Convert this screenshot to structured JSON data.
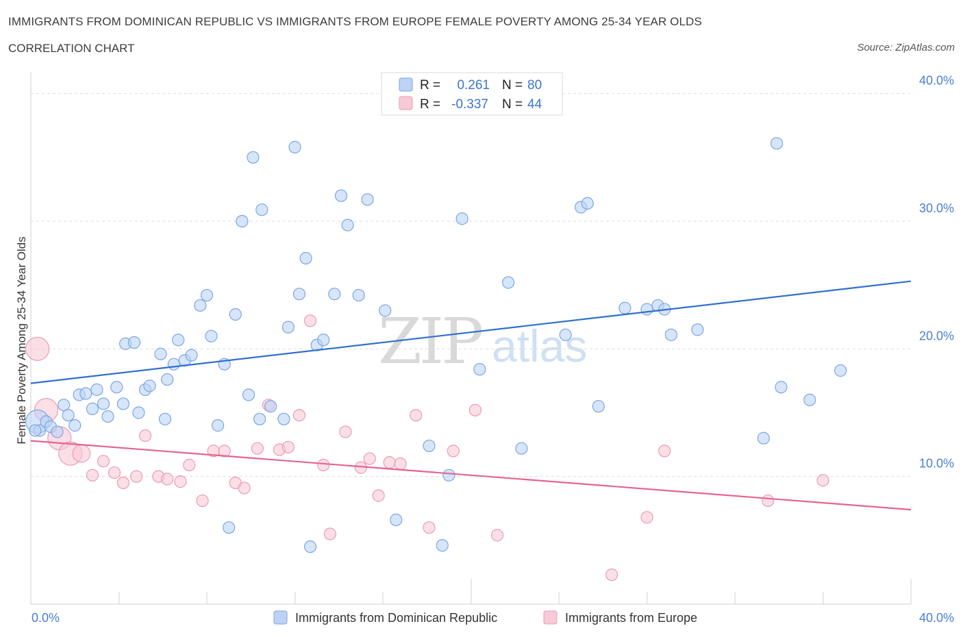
{
  "title": "IMMIGRANTS FROM DOMINICAN REPUBLIC VS IMMIGRANTS FROM EUROPE FEMALE POVERTY AMONG 25-34 YEAR OLDS",
  "subtitle": "CORRELATION CHART",
  "source": "Source: ZipAtlas.com",
  "watermark": {
    "zip": "ZIP",
    "atlas": "atlas"
  },
  "colors": {
    "blue_fill": "#bcd3f5",
    "blue_stroke": "#7aa6e3",
    "blue_line": "#2f6fd0",
    "pink_fill": "#f8c9d7",
    "pink_stroke": "#ec9ab3",
    "pink_line": "#e4648f",
    "grid": "#dddddd",
    "axis_label": "#4a7fd0"
  },
  "stats": {
    "series": [
      {
        "r_label": "R =",
        "r_value": "0.261",
        "n_label": "N =",
        "n_value": "80"
      },
      {
        "r_label": "R =",
        "r_value": "-0.337",
        "n_label": "N =",
        "n_value": "44"
      }
    ]
  },
  "chart_data": {
    "type": "scatter",
    "title": "",
    "xlabel": "",
    "ylabel": "Female Poverty Among 25-34 Year Olds",
    "xlim": [
      0,
      40
    ],
    "ylim": [
      0,
      41
    ],
    "x_tick_labels": [
      "0.0%",
      "40.0%"
    ],
    "y_ticks": [
      10,
      20,
      30,
      40
    ],
    "y_tick_labels": [
      "10.0%",
      "20.0%",
      "30.0%",
      "40.0%"
    ],
    "grid": "horizontal dashed",
    "legend_position": "bottom-center",
    "series": [
      {
        "name": "Immigrants from Dominican Republic",
        "color": "blue",
        "trend": {
          "x0": 0,
          "y0": 17.3,
          "x1": 40,
          "y1": 25.3
        },
        "points": [
          {
            "x": 0.3,
            "y": 14.3,
            "s": 2
          },
          {
            "x": 0.4,
            "y": 13.6,
            "s": 1
          },
          {
            "x": 0.7,
            "y": 14.3,
            "s": 1
          },
          {
            "x": 0.9,
            "y": 13.9,
            "s": 1
          },
          {
            "x": 1.2,
            "y": 13.5,
            "s": 1
          },
          {
            "x": 1.5,
            "y": 15.6,
            "s": 1
          },
          {
            "x": 1.7,
            "y": 14.8,
            "s": 1
          },
          {
            "x": 2.0,
            "y": 14.0,
            "s": 1
          },
          {
            "x": 2.2,
            "y": 16.4,
            "s": 1
          },
          {
            "x": 2.5,
            "y": 16.5,
            "s": 1
          },
          {
            "x": 2.8,
            "y": 15.3,
            "s": 1
          },
          {
            "x": 3.0,
            "y": 16.8,
            "s": 1
          },
          {
            "x": 3.3,
            "y": 15.7,
            "s": 1
          },
          {
            "x": 3.5,
            "y": 14.7,
            "s": 1
          },
          {
            "x": 3.9,
            "y": 17.0,
            "s": 1
          },
          {
            "x": 4.2,
            "y": 15.7,
            "s": 1
          },
          {
            "x": 4.3,
            "y": 20.4,
            "s": 1
          },
          {
            "x": 4.7,
            "y": 20.5,
            "s": 1
          },
          {
            "x": 4.9,
            "y": 15.0,
            "s": 1
          },
          {
            "x": 5.2,
            "y": 16.8,
            "s": 1
          },
          {
            "x": 5.4,
            "y": 17.1,
            "s": 1
          },
          {
            "x": 5.9,
            "y": 19.6,
            "s": 1
          },
          {
            "x": 6.1,
            "y": 14.5,
            "s": 1
          },
          {
            "x": 6.2,
            "y": 17.6,
            "s": 1
          },
          {
            "x": 6.5,
            "y": 18.8,
            "s": 1
          },
          {
            "x": 6.7,
            "y": 20.7,
            "s": 1
          },
          {
            "x": 7.0,
            "y": 19.1,
            "s": 1
          },
          {
            "x": 7.3,
            "y": 19.5,
            "s": 1
          },
          {
            "x": 7.7,
            "y": 23.4,
            "s": 1
          },
          {
            "x": 8.0,
            "y": 24.2,
            "s": 1
          },
          {
            "x": 8.2,
            "y": 21.0,
            "s": 1
          },
          {
            "x": 8.5,
            "y": 14.0,
            "s": 1
          },
          {
            "x": 8.8,
            "y": 18.8,
            "s": 1
          },
          {
            "x": 9.0,
            "y": 6.0,
            "s": 1
          },
          {
            "x": 9.3,
            "y": 22.7,
            "s": 1
          },
          {
            "x": 9.6,
            "y": 30.0,
            "s": 1
          },
          {
            "x": 9.9,
            "y": 16.4,
            "s": 1
          },
          {
            "x": 10.1,
            "y": 35.0,
            "s": 1
          },
          {
            "x": 10.4,
            "y": 14.5,
            "s": 1
          },
          {
            "x": 10.5,
            "y": 30.9,
            "s": 1
          },
          {
            "x": 10.9,
            "y": 15.5,
            "s": 1
          },
          {
            "x": 11.5,
            "y": 14.5,
            "s": 1
          },
          {
            "x": 11.7,
            "y": 21.7,
            "s": 1
          },
          {
            "x": 12.0,
            "y": 35.8,
            "s": 1
          },
          {
            "x": 12.2,
            "y": 24.3,
            "s": 1
          },
          {
            "x": 12.5,
            "y": 27.1,
            "s": 1
          },
          {
            "x": 12.7,
            "y": 4.5,
            "s": 1
          },
          {
            "x": 13.0,
            "y": 20.3,
            "s": 1
          },
          {
            "x": 13.3,
            "y": 20.7,
            "s": 1
          },
          {
            "x": 13.8,
            "y": 24.3,
            "s": 1
          },
          {
            "x": 14.1,
            "y": 32.0,
            "s": 1
          },
          {
            "x": 14.4,
            "y": 29.7,
            "s": 1
          },
          {
            "x": 14.9,
            "y": 24.2,
            "s": 1
          },
          {
            "x": 15.3,
            "y": 31.7,
            "s": 1
          },
          {
            "x": 16.1,
            "y": 23.0,
            "s": 1
          },
          {
            "x": 16.6,
            "y": 6.6,
            "s": 1
          },
          {
            "x": 18.1,
            "y": 12.4,
            "s": 1
          },
          {
            "x": 18.6,
            "y": 38.8,
            "s": 1
          },
          {
            "x": 18.7,
            "y": 4.6,
            "s": 1
          },
          {
            "x": 19.0,
            "y": 10.1,
            "s": 1
          },
          {
            "x": 19.6,
            "y": 30.2,
            "s": 1
          },
          {
            "x": 20.4,
            "y": 18.4,
            "s": 1
          },
          {
            "x": 21.7,
            "y": 25.2,
            "s": 1
          },
          {
            "x": 22.3,
            "y": 12.2,
            "s": 1
          },
          {
            "x": 24.3,
            "y": 21.1,
            "s": 1
          },
          {
            "x": 25.0,
            "y": 31.1,
            "s": 1
          },
          {
            "x": 25.3,
            "y": 31.4,
            "s": 1
          },
          {
            "x": 25.8,
            "y": 15.5,
            "s": 1
          },
          {
            "x": 27.0,
            "y": 23.2,
            "s": 1
          },
          {
            "x": 28.0,
            "y": 23.1,
            "s": 1
          },
          {
            "x": 28.5,
            "y": 23.4,
            "s": 1
          },
          {
            "x": 28.8,
            "y": 23.1,
            "s": 1
          },
          {
            "x": 29.1,
            "y": 21.1,
            "s": 1
          },
          {
            "x": 30.3,
            "y": 21.5,
            "s": 1
          },
          {
            "x": 33.3,
            "y": 13.0,
            "s": 1
          },
          {
            "x": 33.9,
            "y": 36.1,
            "s": 1
          },
          {
            "x": 34.1,
            "y": 17.0,
            "s": 1
          },
          {
            "x": 35.4,
            "y": 16.0,
            "s": 1
          },
          {
            "x": 36.8,
            "y": 18.3,
            "s": 1
          },
          {
            "x": 0.2,
            "y": 13.6,
            "s": 1
          }
        ]
      },
      {
        "name": "Immigrants from Europe",
        "color": "pink",
        "trend": {
          "x0": 0,
          "y0": 12.8,
          "x1": 40,
          "y1": 7.4
        },
        "points": [
          {
            "x": 0.3,
            "y": 20.0,
            "s": 2
          },
          {
            "x": 0.7,
            "y": 15.2,
            "s": 2
          },
          {
            "x": 1.3,
            "y": 13.0,
            "s": 2
          },
          {
            "x": 1.8,
            "y": 11.8,
            "s": 2
          },
          {
            "x": 2.3,
            "y": 11.8,
            "s": 1.5
          },
          {
            "x": 2.8,
            "y": 10.1,
            "s": 1
          },
          {
            "x": 3.3,
            "y": 11.2,
            "s": 1
          },
          {
            "x": 3.8,
            "y": 10.3,
            "s": 1
          },
          {
            "x": 4.2,
            "y": 9.5,
            "s": 1
          },
          {
            "x": 4.8,
            "y": 10.0,
            "s": 1
          },
          {
            "x": 5.2,
            "y": 13.2,
            "s": 1
          },
          {
            "x": 5.8,
            "y": 10.0,
            "s": 1
          },
          {
            "x": 6.2,
            "y": 9.8,
            "s": 1
          },
          {
            "x": 6.8,
            "y": 9.6,
            "s": 1
          },
          {
            "x": 7.2,
            "y": 10.9,
            "s": 1
          },
          {
            "x": 7.8,
            "y": 8.1,
            "s": 1
          },
          {
            "x": 8.3,
            "y": 12.0,
            "s": 1
          },
          {
            "x": 8.8,
            "y": 12.0,
            "s": 1
          },
          {
            "x": 9.3,
            "y": 9.5,
            "s": 1
          },
          {
            "x": 9.7,
            "y": 9.1,
            "s": 1
          },
          {
            "x": 10.3,
            "y": 12.2,
            "s": 1
          },
          {
            "x": 10.8,
            "y": 15.6,
            "s": 1
          },
          {
            "x": 11.3,
            "y": 12.1,
            "s": 1
          },
          {
            "x": 11.7,
            "y": 12.3,
            "s": 1
          },
          {
            "x": 12.2,
            "y": 14.8,
            "s": 1
          },
          {
            "x": 12.7,
            "y": 22.2,
            "s": 1
          },
          {
            "x": 13.3,
            "y": 10.9,
            "s": 1
          },
          {
            "x": 13.6,
            "y": 5.5,
            "s": 1
          },
          {
            "x": 14.3,
            "y": 13.5,
            "s": 1
          },
          {
            "x": 15.0,
            "y": 10.7,
            "s": 1
          },
          {
            "x": 15.4,
            "y": 11.4,
            "s": 1
          },
          {
            "x": 15.8,
            "y": 8.5,
            "s": 1
          },
          {
            "x": 16.3,
            "y": 11.1,
            "s": 1
          },
          {
            "x": 16.8,
            "y": 11.0,
            "s": 1
          },
          {
            "x": 17.5,
            "y": 14.8,
            "s": 1
          },
          {
            "x": 18.1,
            "y": 6.0,
            "s": 1
          },
          {
            "x": 19.2,
            "y": 12.0,
            "s": 1
          },
          {
            "x": 20.2,
            "y": 15.2,
            "s": 1
          },
          {
            "x": 21.2,
            "y": 5.4,
            "s": 1
          },
          {
            "x": 26.4,
            "y": 2.3,
            "s": 1
          },
          {
            "x": 28.0,
            "y": 6.8,
            "s": 1
          },
          {
            "x": 28.8,
            "y": 12.0,
            "s": 1
          },
          {
            "x": 33.5,
            "y": 8.1,
            "s": 1
          },
          {
            "x": 36.0,
            "y": 9.7,
            "s": 1
          }
        ]
      }
    ]
  },
  "legend": {
    "items": [
      {
        "label": "Immigrants from Dominican Republic",
        "color": "blue"
      },
      {
        "label": "Immigrants from Europe",
        "color": "pink"
      }
    ]
  }
}
